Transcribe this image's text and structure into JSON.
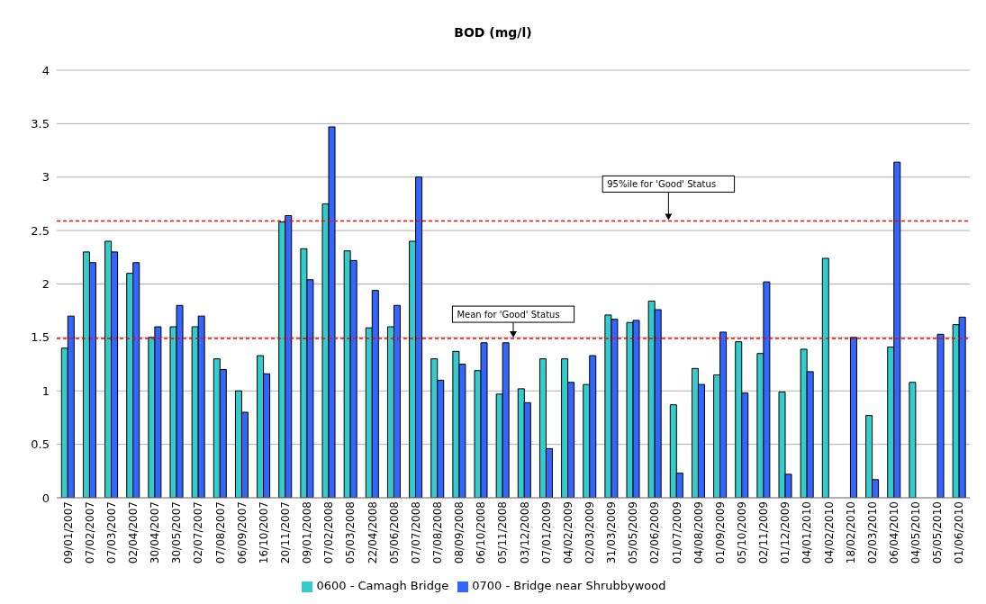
{
  "chart_data": {
    "type": "bar",
    "title": "BOD (mg/l)",
    "categories": [
      "09/01/2007",
      "07/02/2007",
      "07/03/2007",
      "02/04/2007",
      "30/04/2007",
      "30/05/2007",
      "02/07/2007",
      "07/08/2007",
      "06/09/2007",
      "16/10/2007",
      "20/11/2007",
      "09/01/2008",
      "07/02/2008",
      "05/03/2008",
      "22/04/2008",
      "05/06/2008",
      "07/07/2008",
      "07/08/2008",
      "08/09/2008",
      "06/10/2008",
      "05/11/2008",
      "03/12/2008",
      "07/01/2009",
      "04/02/2009",
      "02/03/2009",
      "31/03/2009",
      "05/05/2009",
      "02/06/2009",
      "01/07/2009",
      "04/08/2009",
      "01/09/2009",
      "05/10/2009",
      "02/11/2009",
      "01/12/2009",
      "04/01/2010",
      "04/02/2010",
      "18/02/2010",
      "02/03/2010",
      "06/04/2010",
      "04/05/2010",
      "05/05/2010",
      "01/06/2010"
    ],
    "series": [
      {
        "name": "0600 - Camagh Bridge",
        "color": "#33cccc",
        "values": [
          1.4,
          2.3,
          2.4,
          2.1,
          1.5,
          1.6,
          1.6,
          1.3,
          1.0,
          1.33,
          2.58,
          2.33,
          2.75,
          2.31,
          1.59,
          1.6,
          2.4,
          1.3,
          1.37,
          1.19,
          0.97,
          1.02,
          1.3,
          1.3,
          1.06,
          1.71,
          1.64,
          1.84,
          0.87,
          1.21,
          1.15,
          1.46,
          1.35,
          0.99,
          1.39,
          2.24,
          null,
          0.77,
          1.41,
          1.08,
          null,
          1.62
        ]
      },
      {
        "name": "0700 - Bridge near Shrubbywood",
        "color": "#3366ff",
        "values": [
          1.7,
          2.2,
          2.3,
          2.2,
          1.6,
          1.8,
          1.7,
          1.2,
          0.8,
          1.16,
          2.64,
          2.04,
          3.47,
          2.22,
          1.94,
          1.8,
          3.0,
          1.1,
          1.25,
          1.45,
          1.45,
          0.89,
          0.46,
          1.08,
          1.33,
          1.67,
          1.66,
          1.76,
          0.23,
          1.06,
          1.55,
          0.98,
          2.02,
          0.22,
          1.18,
          null,
          1.5,
          0.17,
          3.14,
          null,
          1.53,
          1.69
        ]
      }
    ],
    "ylim": [
      0,
      4
    ],
    "yticks": [
      0,
      0.5,
      1,
      1.5,
      2,
      2.5,
      3,
      3.5,
      4
    ],
    "grid": "y",
    "legend": "bottom",
    "ref_lines": [
      {
        "axis": "y",
        "value": 2.59,
        "label": "95%ile for 'Good' Status",
        "color": "#ff0000",
        "line_style": "dashed"
      },
      {
        "axis": "y",
        "value": 1.49,
        "label": "Mean for 'Good' Status",
        "color": "#ff0000",
        "line_style": "dashed"
      }
    ]
  }
}
